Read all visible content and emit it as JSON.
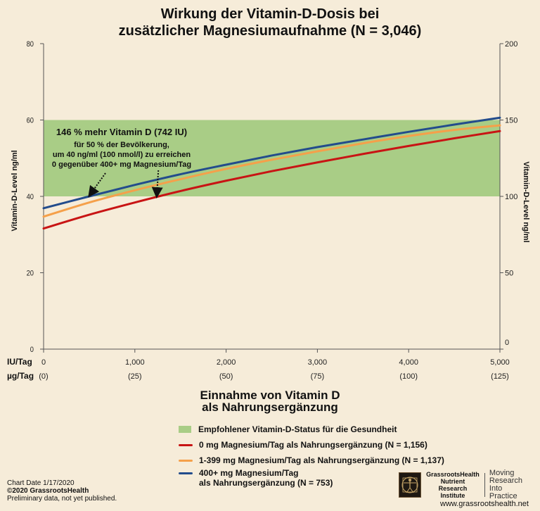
{
  "chart_data": {
    "type": "line",
    "title_lines": [
      "Wirkung der Vitamin-D-Dosis bei",
      "zusätzlicher Magnesiumaufnahme (N = 3,046)"
    ],
    "xlabel_lines": [
      "Einnahme von Vitamin D",
      "als Nahrungsergänzung"
    ],
    "ylabel_left": "Vitamin-D-Level ng/ml",
    "ylabel_right": "Vitamin-D-Level ng/ml",
    "xlim": [
      0,
      5000
    ],
    "ylim_left": [
      0,
      80
    ],
    "ylim_right": [
      0,
      200
    ],
    "x_unit_label": "IU/Tag",
    "x_unit_label2": "µg/Tag",
    "x_ticks": [
      {
        "value": 0,
        "iu": "0",
        "ug": "(0)"
      },
      {
        "value": 1000,
        "iu": "1,000",
        "ug": "(25)"
      },
      {
        "value": 2000,
        "iu": "2,000",
        "ug": "(50)"
      },
      {
        "value": 3000,
        "iu": "3,000",
        "ug": "(75)"
      },
      {
        "value": 4000,
        "iu": "4,000",
        "ug": "(100)"
      },
      {
        "value": 5000,
        "iu": "5,000",
        "ug": "(125)"
      }
    ],
    "y_ticks_left": [
      "0",
      "20",
      "40",
      "60",
      "80"
    ],
    "y_ticks_right": [
      "0",
      "50",
      "100",
      "150",
      "200"
    ],
    "target_band": {
      "from": 40,
      "to": 60,
      "label": "Empfohlener Vitamin-D-Status für die Gesundheit",
      "color": "#a9cd86"
    },
    "x": [
      0,
      500,
      1000,
      1500,
      2000,
      2500,
      3000,
      3500,
      4000,
      4500,
      5000
    ],
    "series": [
      {
        "name": "0 mg Magnesium/Tag als Nahrungsergänzung (N = 1,156)",
        "legend_lines": [
          "0 mg Magnesium/Tag als Nahrungsergänzung (N = 1,156)"
        ],
        "color": "#c81414",
        "values": [
          31.6,
          35.2,
          38.4,
          41.4,
          44.1,
          46.6,
          48.9,
          51.1,
          53.2,
          55.2,
          57.1
        ]
      },
      {
        "name": "1-399 mg Magnesium/Tag als Nahrungsergänzung (N = 1,137)",
        "legend_lines": [
          "1-399 mg Magnesium/Tag als Nahrungsergänzung (N = 1,137)"
        ],
        "color": "#f5a04a",
        "values": [
          34.7,
          38.4,
          41.6,
          44.5,
          47.2,
          49.6,
          51.8,
          53.9,
          55.8,
          57.4,
          58.6
        ]
      },
      {
        "name": "400+ mg Magnesium/Tag als Nahrungsergänzung (N = 753)",
        "legend_lines": [
          "400+ mg Magnesium/Tag",
          "als Nahrungsergänzung (N = 753)"
        ],
        "color": "#234c8c",
        "values": [
          36.9,
          40.0,
          43.0,
          45.8,
          48.3,
          50.7,
          52.9,
          54.9,
          56.9,
          58.8,
          60.6
        ]
      }
    ],
    "annotation": {
      "heading": "146 % mehr Vitamin D (742 IU)",
      "lines": [
        "für 50 % der Bevölkerung,",
        "um 40 ng/ml (100 nmol/l) zu erreichen",
        "0 gegenüber 400+ mg Magnesium/Tag"
      ],
      "arrow_points": [
        {
          "x": 500,
          "y": 40
        },
        {
          "x": 1242,
          "y": 40
        }
      ]
    }
  },
  "footer": {
    "chart_date": "Chart Date 1/17/2020",
    "copyright": "©2020 GrassrootsHealth",
    "note": "Preliminary data, not yet published."
  },
  "brand": {
    "name_lines": [
      "GrassrootsHealth",
      "Nutrient",
      "Research Institute"
    ],
    "tagline_lines": [
      "Moving",
      "Research",
      "Into Practice"
    ],
    "url": "www.grassrootshealth.net",
    "icon": "vitruvian-man-icon"
  }
}
